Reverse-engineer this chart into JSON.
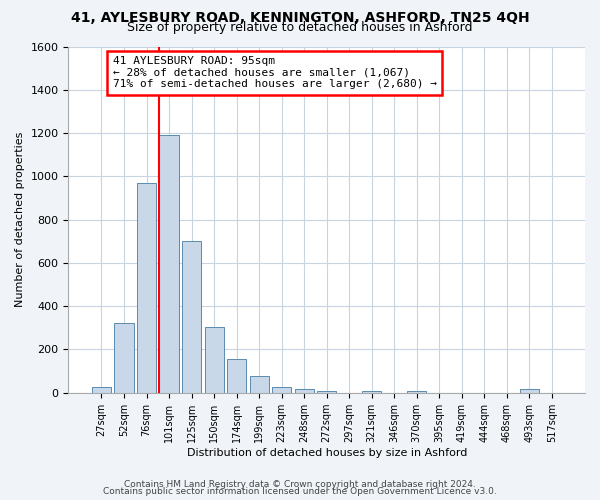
{
  "title1": "41, AYLESBURY ROAD, KENNINGTON, ASHFORD, TN25 4QH",
  "title2": "Size of property relative to detached houses in Ashford",
  "xlabel": "Distribution of detached houses by size in Ashford",
  "ylabel": "Number of detached properties",
  "categories": [
    "27sqm",
    "52sqm",
    "76sqm",
    "101sqm",
    "125sqm",
    "150sqm",
    "174sqm",
    "199sqm",
    "223sqm",
    "248sqm",
    "272sqm",
    "297sqm",
    "321sqm",
    "346sqm",
    "370sqm",
    "395sqm",
    "419sqm",
    "444sqm",
    "468sqm",
    "493sqm",
    "517sqm"
  ],
  "values": [
    28,
    320,
    970,
    1190,
    700,
    305,
    155,
    75,
    28,
    18,
    10,
    0,
    10,
    0,
    10,
    0,
    0,
    0,
    0,
    15,
    0
  ],
  "bar_color": "#c8d8e8",
  "bar_edge_color": "#5a8ab0",
  "annotation_title": "41 AYLESBURY ROAD: 95sqm",
  "annotation_line1": "← 28% of detached houses are smaller (1,067)",
  "annotation_line2": "71% of semi-detached houses are larger (2,680) →",
  "ylim": [
    0,
    1600
  ],
  "yticks": [
    0,
    200,
    400,
    600,
    800,
    1000,
    1200,
    1400,
    1600
  ],
  "footer1": "Contains HM Land Registry data © Crown copyright and database right 2024.",
  "footer2": "Contains public sector information licensed under the Open Government Licence v3.0.",
  "bg_color": "#f0f4f8",
  "plot_bg_color": "#ffffff",
  "red_line_index": 3
}
